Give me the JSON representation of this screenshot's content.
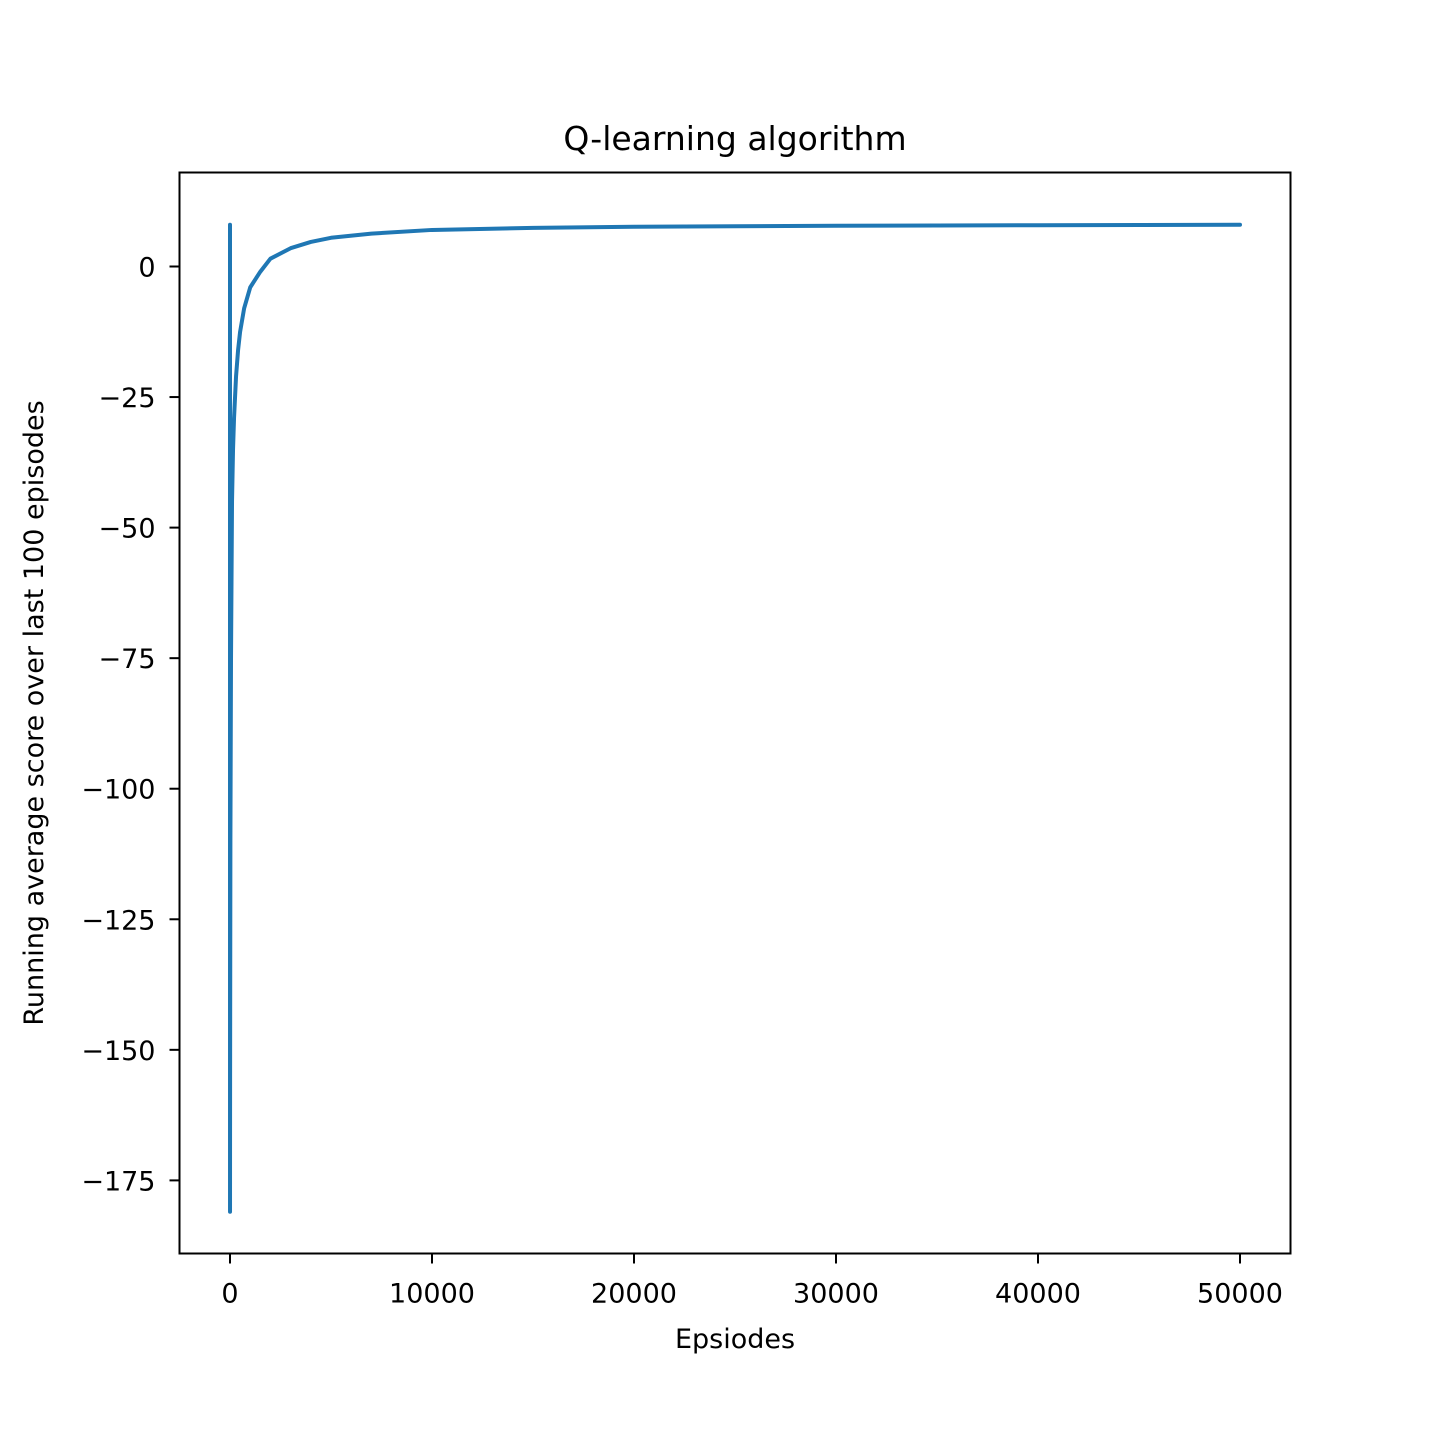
{
  "chart_data": {
    "type": "line",
    "title": "Q-learning algorithm",
    "xlabel": "Epsiodes",
    "ylabel": "Running average score over last 100 episodes",
    "xlim": [
      -2500,
      52500
    ],
    "ylim": [
      -189,
      18
    ],
    "x_ticks": [
      0,
      10000,
      20000,
      30000,
      40000,
      50000
    ],
    "x_tick_labels": [
      "0",
      "10000",
      "20000",
      "30000",
      "40000",
      "50000"
    ],
    "y_ticks": [
      0,
      -25,
      -50,
      -75,
      -100,
      -125,
      -150,
      -175
    ],
    "y_tick_labels": [
      "0",
      "−25",
      "−50",
      "−75",
      "−100",
      "−125",
      "−150",
      "−175"
    ],
    "grid": false,
    "series": [
      {
        "color": "#1f77b4",
        "x": [
          0,
          1,
          2,
          5,
          10,
          20,
          50,
          100,
          150,
          200,
          300,
          400,
          500,
          700,
          1000,
          1500,
          2000,
          3000,
          4000,
          5000,
          7000,
          10000,
          15000,
          20000,
          25000,
          30000,
          35000,
          40000,
          45000,
          50000
        ],
        "y": [
          8,
          -181,
          -170,
          -155,
          -140,
          -110,
          -75,
          -45,
          -35,
          -29,
          -21,
          -16,
          -12.5,
          -8,
          -4,
          -1,
          1.5,
          3.5,
          4.7,
          5.5,
          6.3,
          7.0,
          7.4,
          7.6,
          7.7,
          7.8,
          7.85,
          7.9,
          7.95,
          8.0
        ]
      }
    ]
  }
}
